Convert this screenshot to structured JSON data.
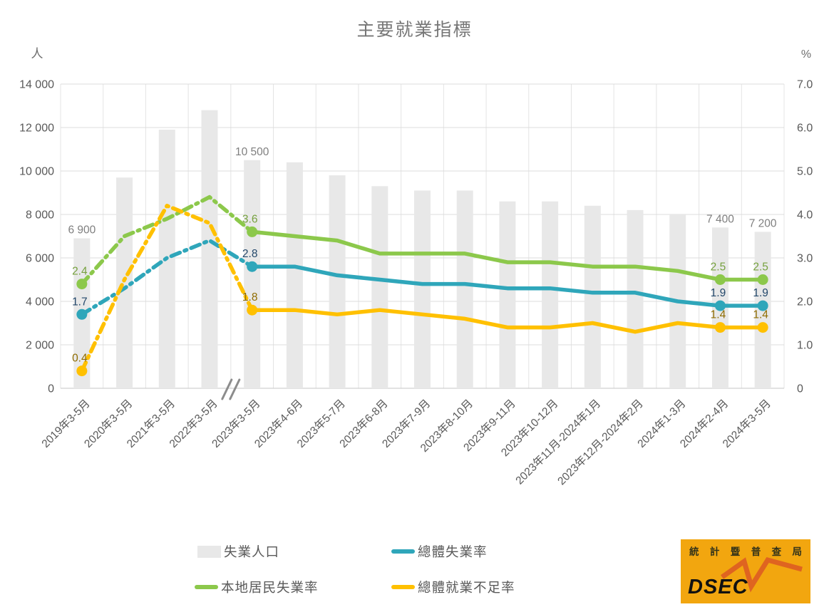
{
  "title": "主要就業指標",
  "chart_data": {
    "type": "bar+line combo",
    "categories": [
      "2019年3-5月",
      "2020年3-5月",
      "2021年3-5月",
      "2022年3-5月",
      "2023年3-5月",
      "2023年4-6月",
      "2023年5-7月",
      "2023年6-8月",
      "2023年7-9月",
      "2023年8-10月",
      "2023年9-11月",
      "2023年10-12月",
      "2023年11月-2024年1月",
      "2023年12月-2024年2月",
      "2024年1-3月",
      "2024年2-4月",
      "2024年3-5月"
    ],
    "left_axis": {
      "unit": "人",
      "max": 14000,
      "min": 0,
      "ticks": [
        "14 000",
        "12 000",
        "10 000",
        "8 000",
        "6 000",
        "4 000",
        "2 000",
        "0"
      ]
    },
    "right_axis": {
      "unit": "%",
      "max": 7.0,
      "min": 0,
      "ticks": [
        "7.0",
        "6.0",
        "5.0",
        "4.0",
        "3.0",
        "2.0",
        "1.0",
        "0"
      ]
    },
    "bar_series": {
      "name": "失業人口",
      "axis": "left",
      "color": "#E8E8E8",
      "values": [
        6900,
        9700,
        11900,
        12800,
        10500,
        10400,
        9800,
        9300,
        9100,
        9100,
        8600,
        8600,
        8400,
        8200,
        8000,
        7400,
        7200
      ],
      "labels": {
        "0": "6 900",
        "4": "10 500",
        "15": "7 400",
        "16": "7 200"
      },
      "label_color": "#7F7F7F"
    },
    "line_series": [
      {
        "name": "總體失業率",
        "axis": "right",
        "color": "#2FA6BA",
        "label_color": "#24486B",
        "values": [
          1.7,
          2.3,
          3.0,
          3.4,
          2.8,
          2.8,
          2.6,
          2.5,
          2.4,
          2.4,
          2.3,
          2.3,
          2.2,
          2.2,
          2.0,
          1.9,
          1.9
        ],
        "labels": {
          "0": "1.7",
          "4": "2.8",
          "15": "1.9",
          "16": "1.9"
        }
      },
      {
        "name": "本地居民失業率",
        "axis": "right",
        "color": "#8CC84B",
        "label_color": "#76A13E",
        "values": [
          2.4,
          3.5,
          3.9,
          4.4,
          3.6,
          3.5,
          3.4,
          3.1,
          3.1,
          3.1,
          2.9,
          2.9,
          2.8,
          2.8,
          2.7,
          2.5,
          2.5
        ],
        "labels": {
          "0": "2.4",
          "4": "3.6",
          "15": "2.5",
          "16": "2.5"
        }
      },
      {
        "name": "總體就業不足率",
        "axis": "right",
        "color": "#FFC000",
        "label_color": "#8F6C00",
        "values": [
          0.4,
          2.5,
          4.2,
          3.8,
          1.8,
          1.8,
          1.7,
          1.8,
          1.7,
          1.6,
          1.4,
          1.4,
          1.5,
          1.3,
          1.5,
          1.4,
          1.4
        ],
        "labels": {
          "0": "0.4",
          "4": "1.8",
          "15": "1.4",
          "16": "1.4"
        }
      }
    ],
    "dashed_until_index": 4,
    "axis_break_between": [
      3,
      4
    ],
    "marker_indices": [
      0,
      4,
      15,
      16
    ],
    "grid": "horizontal+vertical",
    "note": "unlabeled intermediate values estimated from gridlines"
  },
  "legend": {
    "items": [
      {
        "label": "失業人口",
        "kind": "bar",
        "color": "#E8E8E8"
      },
      {
        "label": "總體失業率",
        "kind": "line",
        "color": "#2FA6BA"
      },
      {
        "label": "本地居民失業率",
        "kind": "line",
        "color": "#8CC84B"
      },
      {
        "label": "總體就業不足率",
        "kind": "line",
        "color": "#FFC000"
      }
    ]
  },
  "logo": {
    "chinese": "統計暨普查局",
    "acronym": "DSEC",
    "bg_color": "#F2A60F",
    "zigzag_color": "#DF6420"
  },
  "colors": {
    "title": "#767676",
    "tick_label": "#595959",
    "gridline": "#DCDCDC",
    "axis_line": "#C6C6C6",
    "axis_break": "#8C8C8C"
  }
}
